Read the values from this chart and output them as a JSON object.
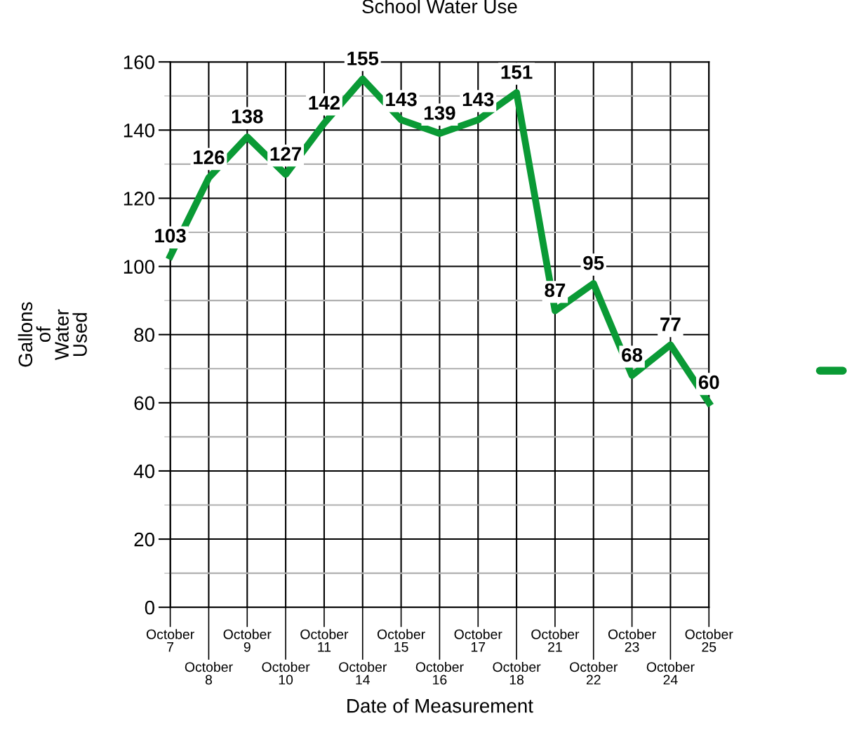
{
  "chart_data": {
    "type": "line",
    "title": "School Water Use",
    "xlabel": "Date of Measurement",
    "ylabel": "Gallons of Water Used",
    "categories": [
      "October 7",
      "October 8",
      "October 9",
      "October 10",
      "October 11",
      "October 14",
      "October 15",
      "October 16",
      "October 17",
      "October 18",
      "October 21",
      "October 22",
      "October 23",
      "October 24",
      "October 25"
    ],
    "series": [
      {
        "color": "#0a9a35",
        "values": [
          103,
          126,
          138,
          127,
          142,
          155,
          143,
          139,
          143,
          151,
          87,
          95,
          68,
          77,
          60
        ]
      }
    ],
    "ylim": [
      0,
      160
    ],
    "yticks": [
      0,
      20,
      40,
      60,
      80,
      100,
      120,
      140,
      160
    ],
    "grid": true,
    "data_labels": true,
    "marker": "none",
    "line_style": "solid"
  }
}
